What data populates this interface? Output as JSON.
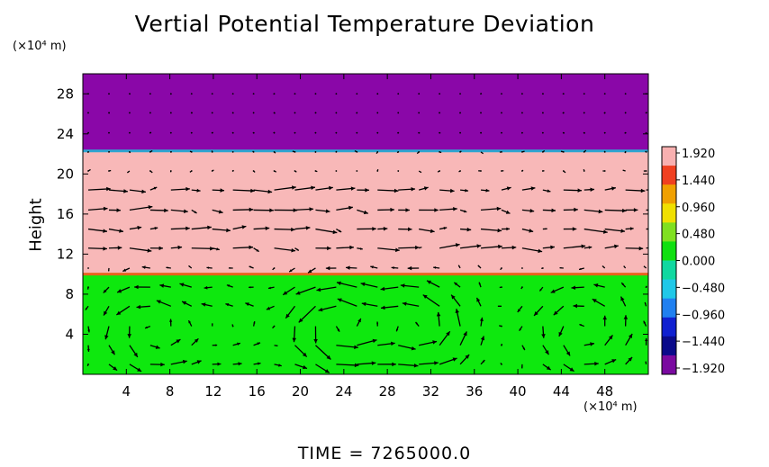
{
  "chart_data": {
    "type": "heatmap",
    "title": "Vertial Potential Temperature Deviation",
    "ylabel": "Height",
    "y_unit": "(×10⁴ m)",
    "x_unit": "(×10⁴ m)",
    "xlim": [
      0,
      52
    ],
    "ylim": [
      0,
      30
    ],
    "x_ticks": [
      "4",
      "8",
      "12",
      "16",
      "20",
      "24",
      "28",
      "32",
      "36",
      "40",
      "44",
      "48"
    ],
    "y_ticks": [
      "4",
      "8",
      "12",
      "16",
      "20",
      "24",
      "28"
    ],
    "x_tick_values": [
      4,
      8,
      12,
      16,
      20,
      24,
      28,
      32,
      36,
      40,
      44,
      48
    ],
    "y_tick_values": [
      4,
      8,
      12,
      16,
      20,
      24,
      28
    ],
    "layers": [
      {
        "y0": 0,
        "y1": 10,
        "value": 0.48,
        "color": "#0ee80e"
      },
      {
        "y0": 10,
        "y1": 22.3,
        "value": 1.92,
        "color": "#f8b8b8"
      },
      {
        "y0": 22.3,
        "y1": 30,
        "value": -1.92,
        "color": "#8a07a8"
      }
    ],
    "interfaces": [
      {
        "y": 10,
        "color": "#e8621c"
      },
      {
        "y": 22.3,
        "color": "#2fa5d0"
      }
    ],
    "colorbar": {
      "labels": [
        "1.920",
        "1.440",
        "0.960",
        "0.480",
        "0.000",
        "−0.480",
        "−0.960",
        "−1.440",
        "−1.920"
      ],
      "values": [
        1.92,
        1.44,
        0.96,
        0.48,
        0.0,
        -0.48,
        -0.96,
        -1.44,
        -1.92
      ],
      "colors": [
        "#f8b0b0",
        "#f04020",
        "#f0a000",
        "#f0e000",
        "#80e020",
        "#10e010",
        "#10d8a0",
        "#20c8e8",
        "#2080f0",
        "#1020d0",
        "#0a0a8a",
        "#7a0aa0"
      ]
    },
    "vector_field": {
      "description": "velocity arrows",
      "x_start": 0.5,
      "x_step": 1.9,
      "y_values": [
        1.0,
        2.9,
        4.8,
        6.8,
        8.7,
        10.6,
        12.6,
        14.5,
        16.4,
        18.4,
        20.3,
        22.2,
        24.1,
        26.1,
        28.0
      ],
      "cells": [
        {
          "xc": 6.5,
          "yc": 4.5,
          "strength": 2.2
        },
        {
          "xc": 23.5,
          "yc": 5.0,
          "strength": 3.2
        },
        {
          "xc": 31.0,
          "yc": 4.5,
          "strength": 2.8
        },
        {
          "xc": 46.0,
          "yc": 4.5,
          "strength": 2.0
        },
        {
          "xc": 14.0,
          "yc": 4.5,
          "strength": 1.2
        }
      ],
      "upper_flow": {
        "y0": 11,
        "y1": 18.5,
        "u": 1.6
      }
    }
  },
  "footer": {
    "text": "TIME  =  7265000.0"
  }
}
